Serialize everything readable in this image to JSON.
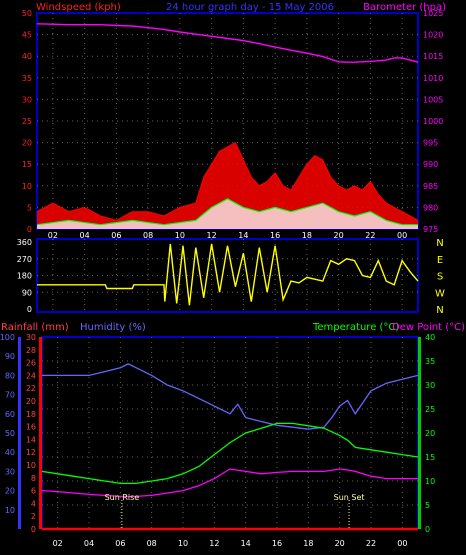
{
  "header": {
    "left": "Windspeed (kph)",
    "center": "24 hour graph day - 15 May 2006",
    "right": "Barometer (hpa)"
  },
  "colors": {
    "frame": "#0000cc",
    "grid": "#606060",
    "axis_tick": "#ff2020",
    "wind_avg": "#ff0000",
    "wind_gust_fill": "#ff0000",
    "wind_low": "#00ff00",
    "wind_white": "#ffffff",
    "baro": "#ff00ff",
    "winddir": "#ffff00",
    "humidity": "#6666ff",
    "temperature": "#00ff00",
    "dewpoint": "#ff00ff",
    "rain": "#ff0000",
    "rain_label": "#ff4040",
    "hum_label": "#6666ff",
    "temp_label": "#00ff00",
    "dew_label": "#ff00ff",
    "sun": "#ffff99"
  },
  "chart_data": [
    {
      "type": "area",
      "panel": "wind-barometer",
      "x_ticks": [
        "02",
        "04",
        "06",
        "08",
        "10",
        "12",
        "14",
        "16",
        "18",
        "20",
        "22",
        "00"
      ],
      "x_range_hours": [
        1,
        25
      ],
      "left_axis": {
        "label": "Windspeed (kph)",
        "ticks": [
          0,
          5,
          10,
          15,
          20,
          25,
          30,
          35,
          40,
          45,
          50
        ],
        "ylim": [
          0,
          50
        ]
      },
      "right_axis": {
        "label": "Barometer (hpa)",
        "ticks": [
          975,
          980,
          985,
          990,
          995,
          1000,
          1005,
          1010,
          1015,
          1020,
          1025
        ],
        "ylim": [
          975,
          1025
        ]
      },
      "series": [
        {
          "name": "Barometer (hpa)",
          "axis": "right",
          "x": [
            1,
            2,
            3,
            4,
            5,
            6,
            7,
            8,
            9,
            10,
            11,
            12,
            13,
            14,
            15,
            16,
            17,
            18,
            19,
            20,
            20.5,
            21,
            22,
            23,
            23.5,
            24,
            24.5,
            25
          ],
          "y": [
            1022.5,
            1022.4,
            1022.3,
            1022.3,
            1022.3,
            1022.1,
            1022.0,
            1021.6,
            1021.2,
            1020.6,
            1020.1,
            1019.6,
            1019.1,
            1018.6,
            1017.9,
            1017.1,
            1016.4,
            1015.7,
            1014.9,
            1013.7,
            1013.6,
            1013.6,
            1013.8,
            1014.1,
            1014.6,
            1014.6,
            1014.1,
            1013.6
          ]
        },
        {
          "name": "Windspeed (kph)",
          "axis": "left",
          "x": [
            1,
            2,
            3,
            4,
            5,
            6,
            7,
            8,
            9,
            10,
            11,
            11.5,
            12,
            12.5,
            13,
            13.5,
            14,
            14.5,
            15,
            15.5,
            16,
            16.5,
            17,
            17.5,
            18,
            18.5,
            19,
            19.5,
            20,
            20.5,
            21,
            21.5,
            22,
            22.5,
            23,
            23.5,
            24,
            24.5,
            25
          ],
          "y": [
            4,
            6,
            4,
            5,
            3,
            2,
            4,
            4,
            3,
            5,
            6,
            12,
            15,
            18,
            19,
            20,
            16,
            12,
            10,
            11,
            13,
            10,
            9,
            12,
            15,
            17,
            16,
            12,
            10,
            9,
            10,
            9,
            11,
            8,
            6,
            5,
            4,
            3,
            2
          ]
        },
        {
          "name": "wind low",
          "axis": "left",
          "x": [
            1,
            3,
            5,
            7,
            9,
            11,
            12,
            13,
            14,
            15,
            16,
            17,
            18,
            19,
            20,
            21,
            22,
            23,
            24,
            25
          ],
          "y": [
            1,
            2,
            1,
            2,
            1,
            2,
            5,
            7,
            5,
            4,
            5,
            4,
            5,
            6,
            4,
            3,
            4,
            2,
            1,
            1
          ]
        }
      ]
    },
    {
      "type": "line",
      "panel": "wind-direction",
      "x_range_hours": [
        1,
        25
      ],
      "left_axis": {
        "ticks": [
          0,
          90,
          180,
          270,
          360
        ],
        "ylim": [
          0,
          360
        ]
      },
      "right_axis": {
        "ticks": [
          "N",
          "W",
          "S",
          "E",
          "N"
        ]
      },
      "series": [
        {
          "name": "Wind direction",
          "axis": "left",
          "x": [
            1,
            5.3,
            5.4,
            7.0,
            7.1,
            8.0,
            9.0,
            9.05,
            9.4,
            9.8,
            10.2,
            10.6,
            11.0,
            11.5,
            12.0,
            12.5,
            13.0,
            13.5,
            14.0,
            14.5,
            15.0,
            15.5,
            16.0,
            16.5,
            17.0,
            17.5,
            18.0,
            18.5,
            19.0,
            19.5,
            20.0,
            20.5,
            21.0,
            21.5,
            22.0,
            22.5,
            23.0,
            23.5,
            24.0,
            24.5,
            25
          ],
          "y": [
            130,
            130,
            110,
            110,
            130,
            130,
            130,
            40,
            350,
            30,
            340,
            20,
            330,
            60,
            350,
            90,
            340,
            120,
            300,
            40,
            330,
            90,
            340,
            50,
            150,
            140,
            170,
            160,
            150,
            260,
            240,
            270,
            260,
            180,
            170,
            260,
            150,
            130,
            260,
            200,
            150
          ]
        }
      ]
    },
    {
      "type": "line",
      "panel": "rain-humidity-temperature",
      "x_ticks": [
        "02",
        "04",
        "06",
        "08",
        "10",
        "12",
        "14",
        "16",
        "18",
        "20",
        "22",
        "00"
      ],
      "x_range_hours": [
        1,
        25
      ],
      "axes": {
        "rainfall_mm": {
          "label": "Rainfall (mm)",
          "ticks": [
            0,
            2,
            4,
            6,
            8,
            10,
            12,
            14,
            16,
            18,
            20,
            22,
            24,
            26,
            28,
            30
          ],
          "ylim": [
            0,
            30
          ]
        },
        "humidity_pct": {
          "label": "Humidity (%)",
          "ticks": [
            10,
            20,
            30,
            40,
            50,
            60,
            70,
            80,
            90,
            100
          ],
          "ylim": [
            0,
            100
          ]
        },
        "temperature_c": {
          "label": "Temperature (°C)",
          "label2": "Dew Point (°C)",
          "ticks": [
            0,
            5,
            10,
            15,
            20,
            25,
            30,
            35,
            40
          ],
          "ylim": [
            0,
            40
          ]
        }
      },
      "series": [
        {
          "name": "Humidity (%)",
          "axis": "humidity_pct",
          "x": [
            1,
            2,
            3,
            4,
            5,
            6,
            6.5,
            7,
            8,
            9,
            10,
            11,
            12,
            13,
            13.5,
            14,
            15,
            16,
            17,
            18,
            19,
            19.5,
            20,
            20.5,
            21,
            22,
            23,
            24,
            25
          ],
          "y": [
            80,
            80,
            80,
            80,
            82,
            84,
            86,
            84,
            80,
            75,
            72,
            68,
            64,
            60,
            65,
            58,
            56,
            54,
            53,
            52,
            53,
            58,
            64,
            67,
            60,
            72,
            76,
            78,
            80
          ]
        },
        {
          "name": "Temperature (°C)",
          "axis": "temperature_c",
          "x": [
            1,
            2,
            3,
            4,
            5,
            6,
            7,
            8,
            9,
            10,
            11,
            12,
            13,
            14,
            15,
            16,
            17,
            18,
            19,
            20,
            20.5,
            21,
            22,
            23,
            24,
            25
          ],
          "y": [
            12,
            11.5,
            11,
            10.5,
            10,
            9.5,
            9.5,
            10,
            10.5,
            11.5,
            13,
            15.5,
            18,
            20,
            21,
            22,
            22,
            21.5,
            21,
            19.5,
            18.5,
            17,
            16.5,
            16,
            15.5,
            15
          ]
        },
        {
          "name": "Dew Point (°C)",
          "axis": "temperature_c",
          "x": [
            1,
            2,
            3,
            4,
            5,
            6,
            7,
            8,
            9,
            10,
            11,
            12,
            13,
            14,
            15,
            16,
            17,
            18,
            19,
            20,
            20.5,
            21,
            22,
            23,
            24,
            25
          ],
          "y": [
            8,
            7.8,
            7.5,
            7.2,
            7,
            6.8,
            6.8,
            7,
            7.5,
            8,
            9,
            10.5,
            12.5,
            12,
            11.5,
            11.8,
            12,
            12,
            12,
            12.5,
            12.3,
            12,
            11,
            10.5,
            10.5,
            10.5
          ]
        },
        {
          "name": "Rainfall (mm)",
          "axis": "rainfall_mm",
          "x": [
            1,
            25
          ],
          "y": [
            0,
            0
          ]
        }
      ],
      "annotations": [
        {
          "text": "Sun Rise",
          "x": 6.1
        },
        {
          "text": "Sun Set",
          "x": 20.6
        }
      ]
    }
  ]
}
